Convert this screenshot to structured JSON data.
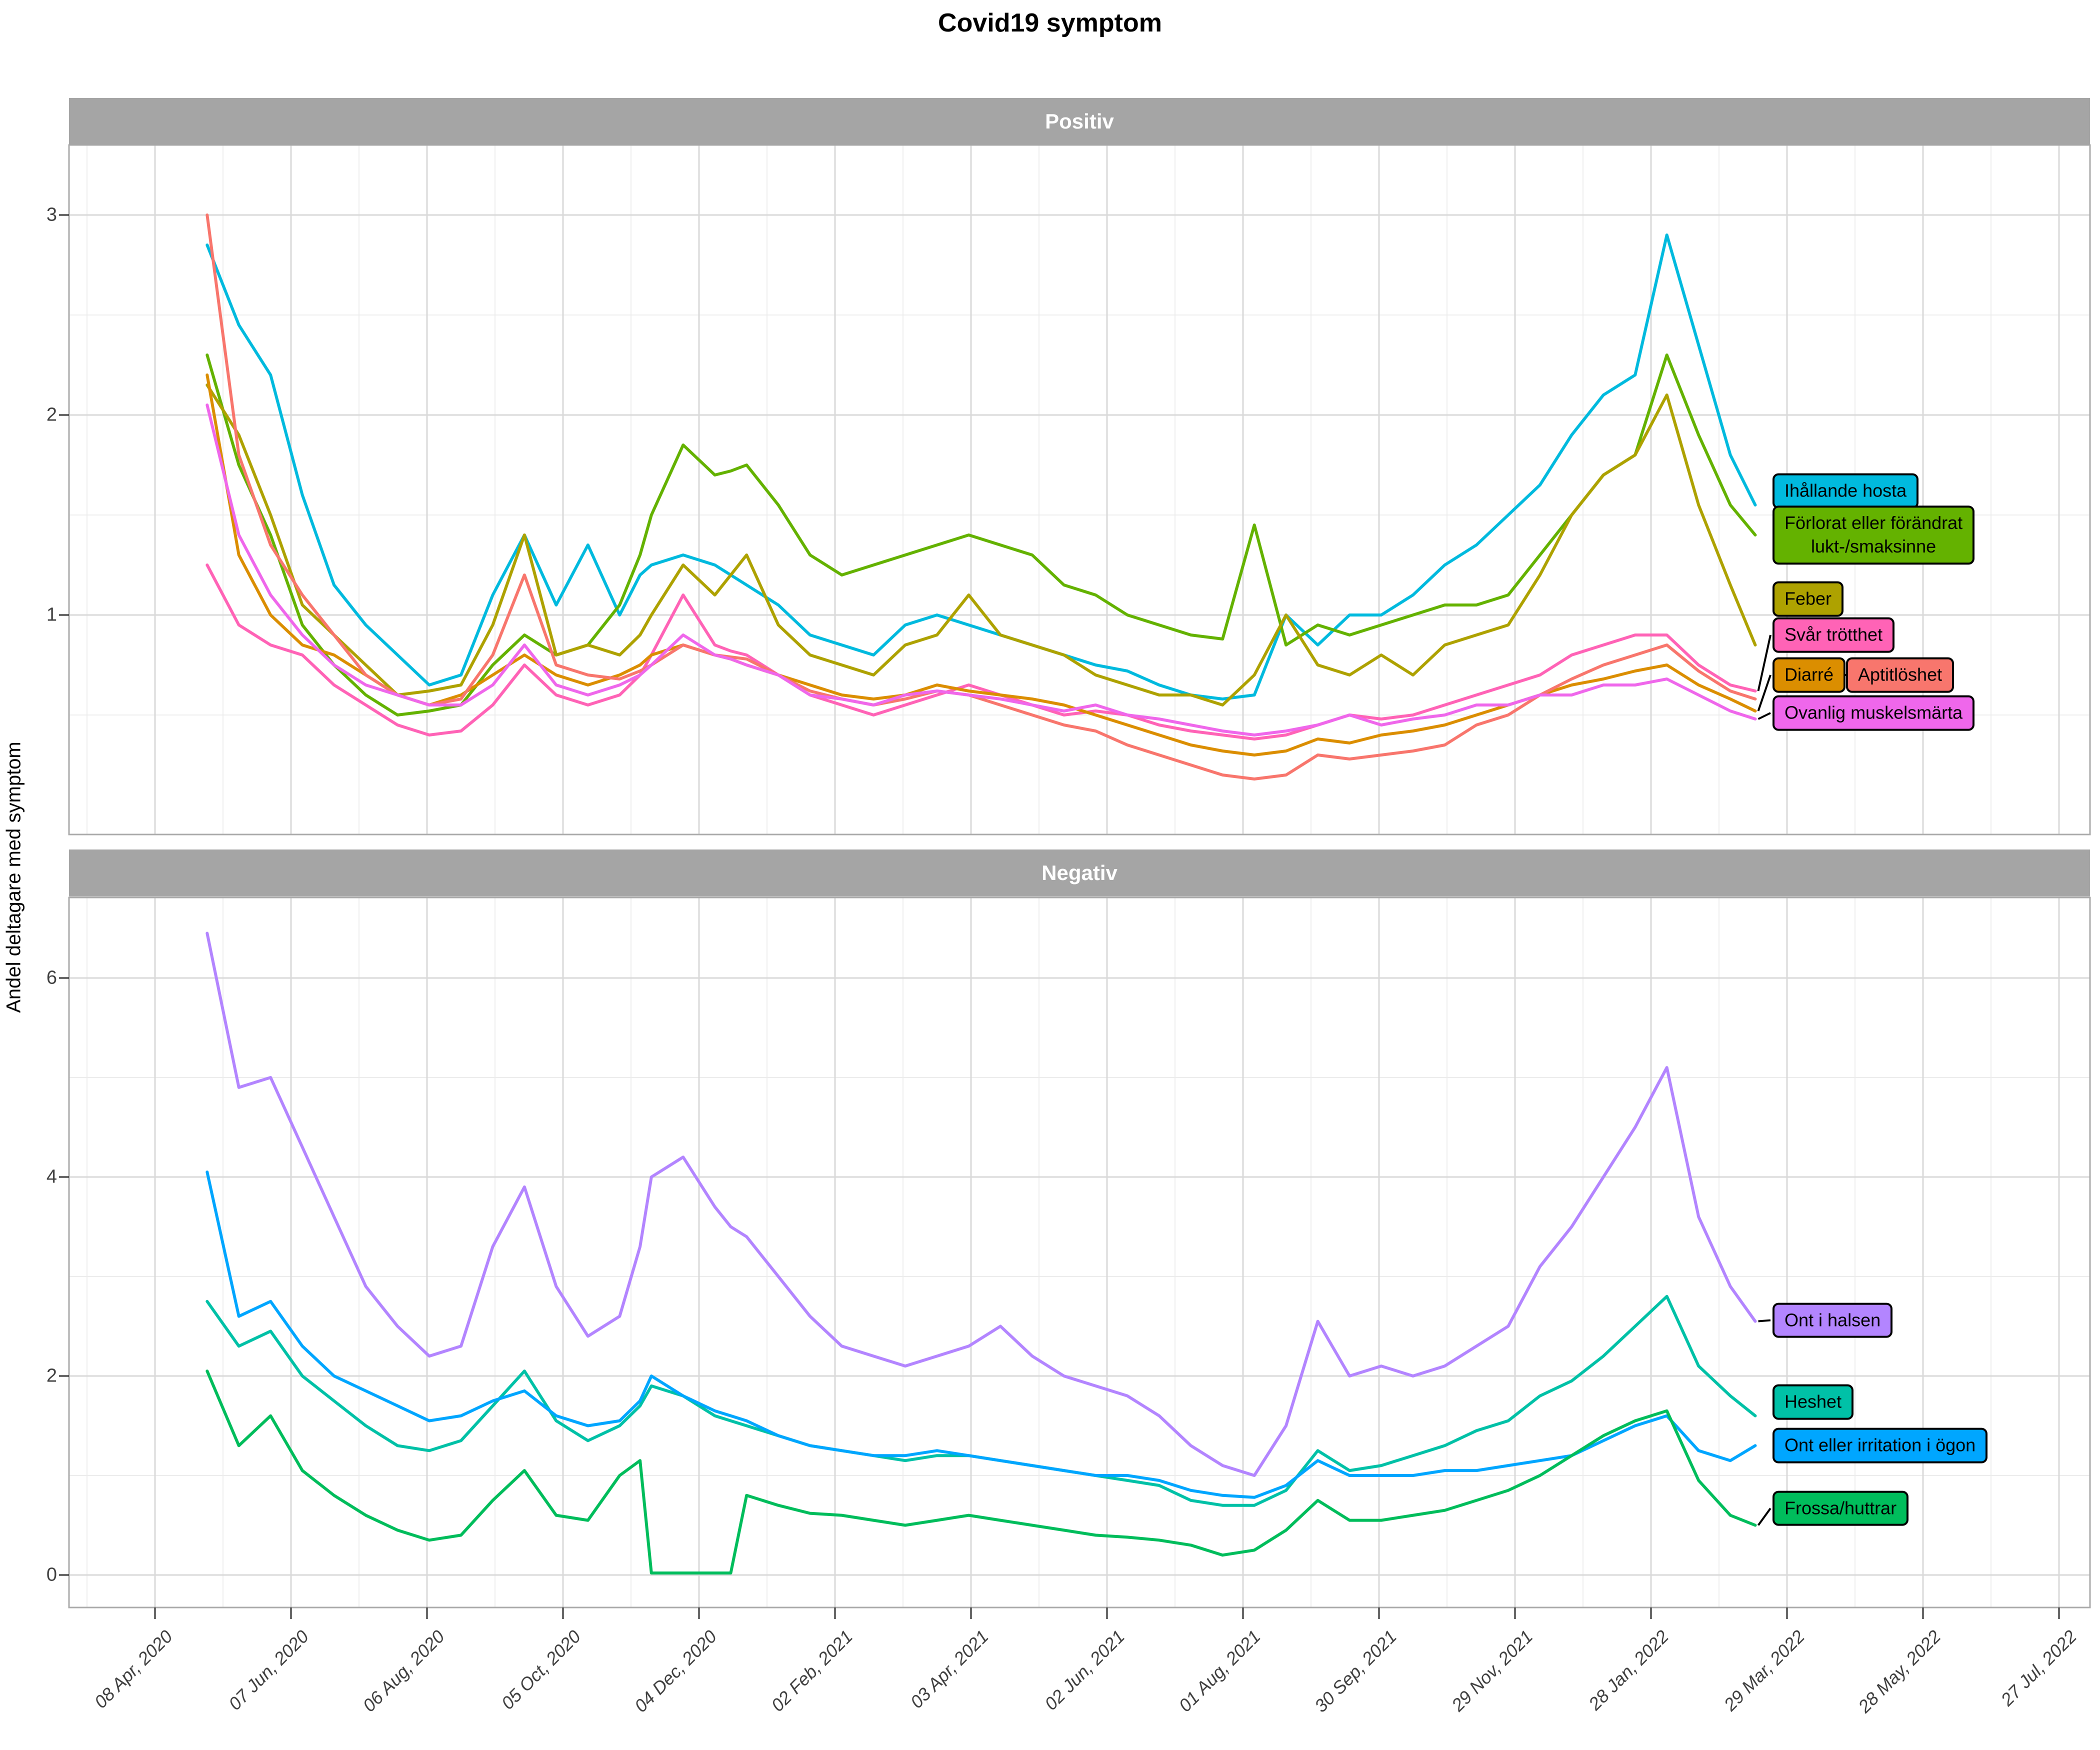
{
  "title": "Covid19 symptom",
  "ylabel": "Andel deltagare med symptom",
  "x_axis": {
    "ticks": [
      {
        "label": "08 Apr, 2020",
        "date": "2020-04-08"
      },
      {
        "label": "07 Jun, 2020",
        "date": "2020-06-07"
      },
      {
        "label": "06 Aug, 2020",
        "date": "2020-08-06"
      },
      {
        "label": "05 Oct, 2020",
        "date": "2020-10-05"
      },
      {
        "label": "04 Dec, 2020",
        "date": "2020-12-04"
      },
      {
        "label": "02 Feb, 2021",
        "date": "2021-02-02"
      },
      {
        "label": "03 Apr, 2021",
        "date": "2021-04-03"
      },
      {
        "label": "02 Jun, 2021",
        "date": "2021-06-02"
      },
      {
        "label": "01 Aug, 2021",
        "date": "2021-08-01"
      },
      {
        "label": "30 Sep, 2021",
        "date": "2021-09-30"
      },
      {
        "label": "29 Nov, 2021",
        "date": "2021-11-29"
      },
      {
        "label": "28 Jan, 2022",
        "date": "2022-01-28"
      },
      {
        "label": "29 Mar, 2022",
        "date": "2022-03-29"
      },
      {
        "label": "28 May, 2022",
        "date": "2022-05-28"
      },
      {
        "label": "27 Jul, 2022",
        "date": "2022-07-27"
      }
    ]
  },
  "chart_data": [
    {
      "type": "line",
      "panel_title": "Positiv",
      "title": "Covid19 symptom",
      "xlabel": "",
      "ylabel": "Andel deltagare med symptom",
      "ylim": [
        -0.1,
        3.35
      ],
      "yticks": [
        1,
        2,
        3
      ],
      "yticks_minor": [
        0.5,
        1.5,
        2.5
      ],
      "grid": true,
      "legend_position": "right-labels",
      "x": [
        "2020-05-01",
        "2020-05-15",
        "2020-05-29",
        "2020-06-12",
        "2020-06-26",
        "2020-07-10",
        "2020-07-24",
        "2020-08-07",
        "2020-08-21",
        "2020-09-04",
        "2020-09-18",
        "2020-10-02",
        "2020-10-16",
        "2020-10-30",
        "2020-11-08",
        "2020-11-13",
        "2020-11-27",
        "2020-12-11",
        "2020-12-18",
        "2020-12-25",
        "2021-01-08",
        "2021-01-22",
        "2021-02-05",
        "2021-02-19",
        "2021-03-05",
        "2021-03-19",
        "2021-04-02",
        "2021-04-16",
        "2021-04-30",
        "2021-05-14",
        "2021-05-28",
        "2021-06-11",
        "2021-06-25",
        "2021-07-09",
        "2021-07-23",
        "2021-08-06",
        "2021-08-20",
        "2021-09-03",
        "2021-09-17",
        "2021-10-01",
        "2021-10-15",
        "2021-10-29",
        "2021-11-12",
        "2021-11-26",
        "2021-12-10",
        "2021-12-24",
        "2022-01-07",
        "2022-01-21",
        "2022-02-04",
        "2022-02-18",
        "2022-03-04",
        "2022-03-15"
      ],
      "series": [
        {
          "name": "Ihållande hosta",
          "label_lines": [
            "Ihållande hosta"
          ],
          "color": "#00BADE",
          "label_value": 1.62,
          "connector": false,
          "values": [
            2.85,
            2.45,
            2.2,
            1.6,
            1.15,
            0.95,
            0.8,
            0.65,
            0.7,
            1.1,
            1.4,
            1.05,
            1.35,
            1.0,
            1.2,
            1.25,
            1.3,
            1.25,
            1.2,
            1.15,
            1.05,
            0.9,
            0.85,
            0.8,
            0.95,
            1.0,
            0.95,
            0.9,
            0.85,
            0.8,
            0.75,
            0.72,
            0.65,
            0.6,
            0.58,
            0.6,
            1.0,
            0.85,
            1.0,
            1.0,
            1.1,
            1.25,
            1.35,
            1.5,
            1.65,
            1.9,
            2.1,
            2.2,
            2.9,
            2.35,
            1.8,
            1.55
          ]
        },
        {
          "name": "Förlorat eller förändrat lukt-/smaksinne",
          "label_lines": [
            "Förlorat eller förändrat",
            "lukt-/smaksinne"
          ],
          "color": "#64B200",
          "label_value": 1.4,
          "connector": false,
          "values": [
            2.3,
            1.75,
            1.4,
            0.95,
            0.75,
            0.6,
            0.5,
            0.52,
            0.55,
            0.75,
            0.9,
            0.8,
            0.85,
            1.05,
            1.3,
            1.5,
            1.85,
            1.7,
            1.72,
            1.75,
            1.55,
            1.3,
            1.2,
            1.25,
            1.3,
            1.35,
            1.4,
            1.35,
            1.3,
            1.15,
            1.1,
            1.0,
            0.95,
            0.9,
            0.88,
            1.45,
            0.85,
            0.95,
            0.9,
            0.95,
            1.0,
            1.05,
            1.05,
            1.1,
            1.3,
            1.5,
            1.7,
            1.8,
            2.3,
            1.9,
            1.55,
            1.4
          ]
        },
        {
          "name": "Feber",
          "label_lines": [
            "Feber"
          ],
          "color": "#AEA200",
          "label_value": 1.08,
          "connector": false,
          "values": [
            2.15,
            1.9,
            1.5,
            1.05,
            0.9,
            0.75,
            0.6,
            0.62,
            0.65,
            0.95,
            1.4,
            0.8,
            0.85,
            0.8,
            0.9,
            1.0,
            1.25,
            1.1,
            1.2,
            1.3,
            0.95,
            0.8,
            0.75,
            0.7,
            0.85,
            0.9,
            1.1,
            0.9,
            0.85,
            0.8,
            0.7,
            0.65,
            0.6,
            0.6,
            0.55,
            0.7,
            1.0,
            0.75,
            0.7,
            0.8,
            0.7,
            0.85,
            0.9,
            0.95,
            1.2,
            1.5,
            1.7,
            1.8,
            2.1,
            1.55,
            1.15,
            0.85
          ]
        },
        {
          "name": "Svår trötthet",
          "label_lines": [
            "Svår trötthet"
          ],
          "color": "#FF63B6",
          "label_value": 0.9,
          "connector": true,
          "values": [
            1.25,
            0.95,
            0.85,
            0.8,
            0.65,
            0.55,
            0.45,
            0.4,
            0.42,
            0.55,
            0.75,
            0.6,
            0.55,
            0.6,
            0.7,
            0.8,
            1.1,
            0.85,
            0.82,
            0.8,
            0.7,
            0.6,
            0.55,
            0.5,
            0.55,
            0.6,
            0.65,
            0.6,
            0.55,
            0.5,
            0.52,
            0.5,
            0.45,
            0.42,
            0.4,
            0.38,
            0.4,
            0.45,
            0.5,
            0.48,
            0.5,
            0.55,
            0.6,
            0.65,
            0.7,
            0.8,
            0.85,
            0.9,
            0.9,
            0.75,
            0.65,
            0.62
          ]
        },
        {
          "name": "Diarré",
          "label_lines": [
            "Diarré"
          ],
          "color": "#DB8E00",
          "label_value": 0.7,
          "connector": true,
          "link_right": true,
          "values": [
            2.2,
            1.3,
            1.0,
            0.85,
            0.8,
            0.7,
            0.6,
            0.55,
            0.6,
            0.7,
            0.8,
            0.7,
            0.65,
            0.7,
            0.75,
            0.8,
            0.85,
            0.8,
            0.78,
            0.75,
            0.7,
            0.65,
            0.6,
            0.58,
            0.6,
            0.65,
            0.62,
            0.6,
            0.58,
            0.55,
            0.5,
            0.45,
            0.4,
            0.35,
            0.32,
            0.3,
            0.32,
            0.38,
            0.36,
            0.4,
            0.42,
            0.45,
            0.5,
            0.55,
            0.6,
            0.65,
            0.68,
            0.72,
            0.75,
            0.65,
            0.58,
            0.52
          ]
        },
        {
          "name": "Aptitlöshet",
          "label_lines": [
            "Aptitlöshet"
          ],
          "color": "#F8766D",
          "label_value": 0.7,
          "label_dx": 147,
          "connector": false,
          "values": [
            3.0,
            1.8,
            1.35,
            1.1,
            0.9,
            0.7,
            0.6,
            0.55,
            0.58,
            0.8,
            1.2,
            0.75,
            0.7,
            0.68,
            0.72,
            0.75,
            0.85,
            0.8,
            0.79,
            0.78,
            0.7,
            0.62,
            0.58,
            0.55,
            0.58,
            0.62,
            0.6,
            0.55,
            0.5,
            0.45,
            0.42,
            0.35,
            0.3,
            0.25,
            0.2,
            0.18,
            0.2,
            0.3,
            0.28,
            0.3,
            0.32,
            0.35,
            0.45,
            0.5,
            0.6,
            0.68,
            0.75,
            0.8,
            0.85,
            0.72,
            0.62,
            0.58
          ]
        },
        {
          "name": "Ovanlig muskelsmärta",
          "label_lines": [
            "Ovanlig muskelsmärta"
          ],
          "color": "#EF67EB",
          "label_value": 0.51,
          "connector": true,
          "values": [
            2.05,
            1.4,
            1.1,
            0.9,
            0.75,
            0.65,
            0.6,
            0.55,
            0.55,
            0.65,
            0.85,
            0.65,
            0.6,
            0.65,
            0.7,
            0.75,
            0.9,
            0.8,
            0.78,
            0.75,
            0.7,
            0.6,
            0.58,
            0.55,
            0.6,
            0.62,
            0.6,
            0.58,
            0.55,
            0.52,
            0.55,
            0.5,
            0.48,
            0.45,
            0.42,
            0.4,
            0.42,
            0.45,
            0.5,
            0.45,
            0.48,
            0.5,
            0.55,
            0.55,
            0.6,
            0.6,
            0.65,
            0.65,
            0.68,
            0.6,
            0.52,
            0.48
          ]
        }
      ]
    },
    {
      "type": "line",
      "panel_title": "Negativ",
      "title": "Covid19 symptom",
      "xlabel": "",
      "ylabel": "Andel deltagare med symptom",
      "ylim": [
        -0.32,
        6.8
      ],
      "yticks": [
        0,
        2,
        4,
        6
      ],
      "yticks_minor": [
        1,
        3,
        5
      ],
      "grid": true,
      "legend_position": "right-labels",
      "x": [
        "2020-05-01",
        "2020-05-15",
        "2020-05-29",
        "2020-06-12",
        "2020-06-26",
        "2020-07-10",
        "2020-07-24",
        "2020-08-07",
        "2020-08-21",
        "2020-09-04",
        "2020-09-18",
        "2020-10-02",
        "2020-10-16",
        "2020-10-30",
        "2020-11-08",
        "2020-11-13",
        "2020-11-27",
        "2020-12-11",
        "2020-12-18",
        "2020-12-25",
        "2021-01-08",
        "2021-01-22",
        "2021-02-05",
        "2021-02-19",
        "2021-03-05",
        "2021-03-19",
        "2021-04-02",
        "2021-04-16",
        "2021-04-30",
        "2021-05-14",
        "2021-05-28",
        "2021-06-11",
        "2021-06-25",
        "2021-07-09",
        "2021-07-23",
        "2021-08-06",
        "2021-08-20",
        "2021-09-03",
        "2021-09-17",
        "2021-10-01",
        "2021-10-15",
        "2021-10-29",
        "2021-11-12",
        "2021-11-26",
        "2021-12-10",
        "2021-12-24",
        "2022-01-07",
        "2022-01-21",
        "2022-02-04",
        "2022-02-18",
        "2022-03-04",
        "2022-03-15"
      ],
      "series": [
        {
          "name": "Ont i halsen",
          "label_lines": [
            "Ont i halsen"
          ],
          "color": "#B385FF",
          "label_value": 2.56,
          "connector": true,
          "values": [
            6.45,
            4.9,
            5.0,
            4.3,
            3.6,
            2.9,
            2.5,
            2.2,
            2.3,
            3.3,
            3.9,
            2.9,
            2.4,
            2.6,
            3.3,
            4.0,
            4.2,
            3.7,
            3.5,
            3.4,
            3.0,
            2.6,
            2.3,
            2.2,
            2.1,
            2.2,
            2.3,
            2.5,
            2.2,
            2.0,
            1.9,
            1.8,
            1.6,
            1.3,
            1.1,
            1.0,
            1.5,
            2.55,
            2.0,
            2.1,
            2.0,
            2.1,
            2.3,
            2.5,
            3.1,
            3.5,
            4.0,
            4.5,
            5.1,
            3.6,
            2.9,
            2.55
          ]
        },
        {
          "name": "Heshet",
          "label_lines": [
            "Heshet"
          ],
          "color": "#00C1A7",
          "label_value": 1.74,
          "connector": false,
          "values": [
            2.75,
            2.3,
            2.45,
            2.0,
            1.75,
            1.5,
            1.3,
            1.25,
            1.35,
            1.7,
            2.05,
            1.55,
            1.35,
            1.5,
            1.7,
            1.9,
            1.8,
            1.6,
            1.55,
            1.5,
            1.4,
            1.3,
            1.25,
            1.2,
            1.15,
            1.2,
            1.2,
            1.15,
            1.1,
            1.05,
            1.0,
            0.95,
            0.9,
            0.75,
            0.7,
            0.7,
            0.85,
            1.25,
            1.05,
            1.1,
            1.2,
            1.3,
            1.45,
            1.55,
            1.8,
            1.95,
            2.2,
            2.5,
            2.8,
            2.1,
            1.8,
            1.6
          ]
        },
        {
          "name": "Ont eller irritation i ögon",
          "label_lines": [
            "Ont eller irritation i ögon"
          ],
          "color": "#00A6FF",
          "label_value": 1.3,
          "connector": false,
          "values": [
            4.05,
            2.6,
            2.75,
            2.3,
            2.0,
            1.85,
            1.7,
            1.55,
            1.6,
            1.75,
            1.85,
            1.6,
            1.5,
            1.55,
            1.75,
            2.0,
            1.8,
            1.65,
            1.6,
            1.55,
            1.4,
            1.3,
            1.25,
            1.2,
            1.2,
            1.25,
            1.2,
            1.15,
            1.1,
            1.05,
            1.0,
            1.0,
            0.95,
            0.85,
            0.8,
            0.78,
            0.9,
            1.15,
            1.0,
            1.0,
            1.0,
            1.05,
            1.05,
            1.1,
            1.15,
            1.2,
            1.35,
            1.5,
            1.6,
            1.25,
            1.15,
            1.3
          ]
        },
        {
          "name": "Frossa/huttrar",
          "label_lines": [
            "Frossa/huttrar"
          ],
          "color": "#00BD5C",
          "label_value": 0.67,
          "connector": true,
          "values": [
            2.05,
            1.3,
            1.6,
            1.05,
            0.8,
            0.6,
            0.45,
            0.35,
            0.4,
            0.75,
            1.05,
            0.6,
            0.55,
            1.0,
            1.15,
            0.02,
            0.02,
            0.02,
            0.02,
            0.8,
            0.7,
            0.62,
            0.6,
            0.55,
            0.5,
            0.55,
            0.6,
            0.55,
            0.5,
            0.45,
            0.4,
            0.38,
            0.35,
            0.3,
            0.2,
            0.25,
            0.45,
            0.75,
            0.55,
            0.55,
            0.6,
            0.65,
            0.75,
            0.85,
            1.0,
            1.2,
            1.4,
            1.55,
            1.65,
            0.95,
            0.6,
            0.5
          ]
        }
      ]
    }
  ]
}
